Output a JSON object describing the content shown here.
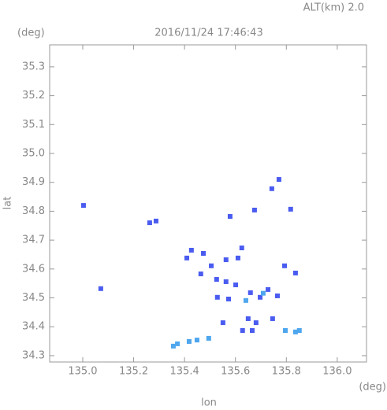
{
  "chart_data": {
    "type": "scatter",
    "title": "2016/11/24 17:46:43",
    "subtitle": "ALT(km) 2.0",
    "y_unit": "(deg)",
    "x_unit": "(deg)",
    "x_label": "lon",
    "y_label": "lat",
    "xlim": [
      134.87,
      136.115
    ],
    "ylim": [
      34.278,
      35.376
    ],
    "xticks": [
      {
        "value": 135,
        "label": "135.0"
      },
      135.2,
      135.4,
      135.6,
      135.8,
      {
        "value": 136,
        "label": "136.0"
      }
    ],
    "yticks": [
      34.3,
      34.4,
      34.5,
      34.6,
      34.7,
      34.8,
      34.9,
      {
        "value": 35,
        "label": "35.0"
      },
      35.1,
      35.2,
      35.3
    ],
    "series": [
      {
        "color": "#4a5cf0",
        "x": [
          135.003,
          135.071,
          135.263,
          135.288,
          135.579,
          135.675,
          135.743,
          135.771,
          135.817,
          135.427,
          135.474,
          135.505,
          135.563,
          135.61,
          135.625,
          135.526,
          135.563,
          135.601,
          135.529,
          135.573,
          135.659,
          135.697,
          135.728,
          135.765,
          135.65,
          135.681,
          135.666,
          135.746,
          135.551,
          135.628,
          135.836,
          135.793,
          135.464,
          135.409
        ],
        "y": [
          34.82,
          34.532,
          34.76,
          34.766,
          34.782,
          34.804,
          34.878,
          34.91,
          34.807,
          34.665,
          34.654,
          34.611,
          34.632,
          34.638,
          34.673,
          34.564,
          34.556,
          34.545,
          34.502,
          34.496,
          34.518,
          34.502,
          34.529,
          34.507,
          34.428,
          34.414,
          34.387,
          34.428,
          34.414,
          34.387,
          34.586,
          34.611,
          34.583,
          34.638
        ]
      },
      {
        "color": "#4ea6ee",
        "x": [
          135.418,
          135.372,
          135.356,
          135.449,
          135.495,
          135.796,
          135.836,
          135.851,
          135.709,
          135.641
        ],
        "y": [
          34.349,
          34.341,
          34.333,
          34.354,
          34.36,
          34.387,
          34.382,
          34.387,
          34.516,
          34.491
        ]
      }
    ]
  }
}
